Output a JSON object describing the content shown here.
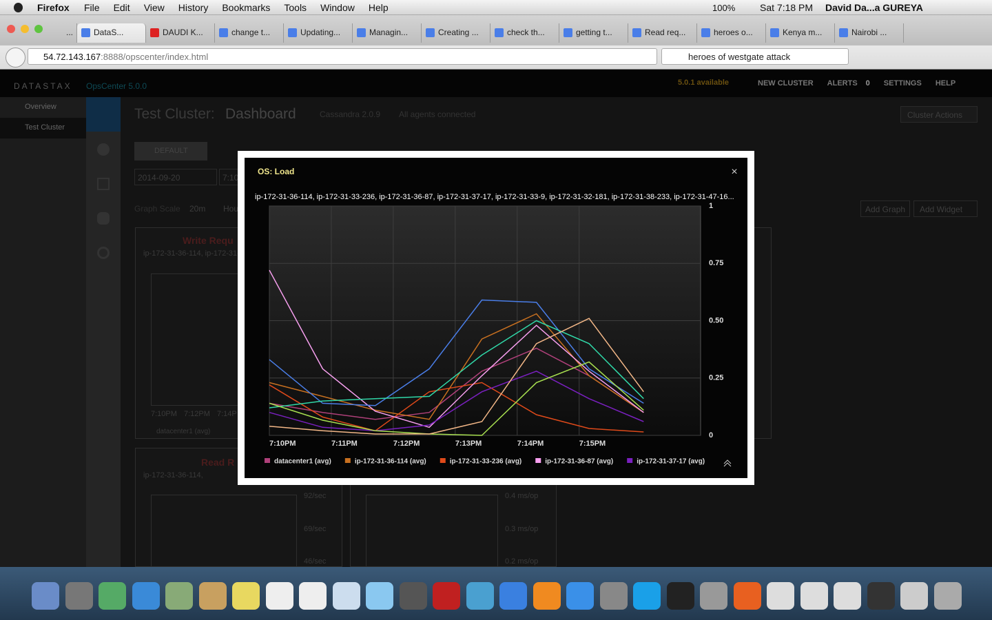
{
  "menubar": {
    "app": "Firefox",
    "menus": [
      "File",
      "Edit",
      "View",
      "History",
      "Bookmarks",
      "Tools",
      "Window",
      "Help"
    ],
    "battery": "100%",
    "clock": "Sat 7:18 PM",
    "user": "David Da...a GUREYA"
  },
  "browser": {
    "tabs": [
      "...",
      "DataS...",
      "DAUDI K...",
      "change t...",
      "Updating...",
      "Managin...",
      "Creating ...",
      "check th...",
      "getting t...",
      "Read req...",
      "heroes o...",
      "Kenya m...",
      "Nairobi ..."
    ],
    "url_host": "54.72.143.167",
    "url_path": ":8888/opscenter/index.html",
    "search": "heroes of westgate attack"
  },
  "app": {
    "logo": "DATASTAX",
    "product": "OpsCenter 5.0.0",
    "update": "5.0.1 available",
    "nav": [
      "NEW CLUSTER",
      "ALERTS",
      "0",
      "SETTINGS",
      "HELP"
    ],
    "sidebar": [
      "Overview",
      "Test Cluster"
    ],
    "cluster": "Test Cluster:",
    "page": "Dashboard",
    "version": "Cassandra 2.0.9",
    "agents": "All agents connected",
    "cluster_actions": "Cluster Actions",
    "tab": "DEFAULT",
    "date": "2014-09-20",
    "time": "7:10",
    "graph_scale": "Graph Scale",
    "scale": "20m",
    "scale_next": "Hou",
    "add_graph": "Add Graph",
    "add_widget": "Add Widget",
    "widget_write": {
      "title": "Write Requ",
      "subtitle": "ip-172-31-36-114, ip-172-31-",
      "x_labels": [
        "7:10PM",
        "7:12PM",
        "7:14P"
      ],
      "legend": "datacenter1 (avg)"
    },
    "widget_read": {
      "title": "Read R",
      "subtitle": "ip-172-31-36-114,",
      "y_labels": [
        "92/sec",
        "69/sec",
        "46/sec"
      ]
    },
    "widget_latency": {
      "y_labels": [
        "0.4 ms/op",
        "0.3 ms/op",
        "0.2 ms/op"
      ]
    }
  },
  "chart_data": {
    "type": "line",
    "title": "OS: Load",
    "subtitle": "ip-172-31-36-114, ip-172-31-33-236, ip-172-31-36-87, ip-172-31-37-17, ip-172-31-33-9, ip-172-31-32-181, ip-172-31-38-233, ip-172-31-47-16...",
    "x": [
      0,
      0.86,
      1.71,
      2.58,
      3.43,
      4.31,
      5.16,
      6.04
    ],
    "xlim": [
      0,
      6.96
    ],
    "xticks": [
      {
        "value": 0,
        "label": "7:10PM"
      },
      {
        "value": 1,
        "label": "7:11PM"
      },
      {
        "value": 2,
        "label": "7:12PM"
      },
      {
        "value": 3,
        "label": "7:13PM"
      },
      {
        "value": 4,
        "label": "7:14PM"
      },
      {
        "value": 5,
        "label": "7:15PM"
      }
    ],
    "ylim": [
      0,
      1
    ],
    "yticks": [
      0,
      0.25,
      {
        "value": 0.5,
        "label": "0.50"
      },
      0.75,
      1
    ],
    "grid": true,
    "series": [
      {
        "name": "datacenter1 (avg)",
        "color": "#b0407a",
        "values": [
          0.14,
          0.1,
          0.07,
          0.1,
          0.28,
          0.38,
          0.26,
          0.1
        ]
      },
      {
        "name": "ip-172-31-36-114 (avg)",
        "color": "#c87020",
        "values": [
          0.23,
          0.17,
          0.11,
          0.07,
          0.42,
          0.53,
          0.26,
          0.1
        ]
      },
      {
        "name": "ip-172-31-33-236 (avg)",
        "color": "#e04a1a",
        "values": [
          0.22,
          0.08,
          0.02,
          0.19,
          0.23,
          0.09,
          0.03,
          0.015
        ]
      },
      {
        "name": "ip-172-31-36-87 (avg)",
        "color": "#f8a0f0",
        "values": [
          0.72,
          0.29,
          0.105,
          0.035,
          0.26,
          0.48,
          0.28,
          0.1
        ]
      },
      {
        "name": "ip-172-31-37-17 (avg)",
        "color": "#7a20c0",
        "values": [
          0.1,
          0.035,
          0.02,
          0.045,
          0.19,
          0.28,
          0.16,
          0.06
        ]
      },
      {
        "color": "#4a7ee8",
        "values": [
          0.33,
          0.14,
          0.13,
          0.29,
          0.59,
          0.58,
          0.29,
          0.14
        ]
      },
      {
        "color": "#30d8a8",
        "values": [
          0.12,
          0.15,
          0.16,
          0.17,
          0.35,
          0.5,
          0.4,
          0.16
        ]
      },
      {
        "color": "#a8e050",
        "values": [
          0.14,
          0.066,
          0.02,
          0.006,
          0,
          0.23,
          0.32,
          0.11
        ]
      },
      {
        "color": "#f4b888",
        "values": [
          0.04,
          0.02,
          0.006,
          0.006,
          0.06,
          0.4,
          0.51,
          0.19
        ]
      }
    ]
  }
}
